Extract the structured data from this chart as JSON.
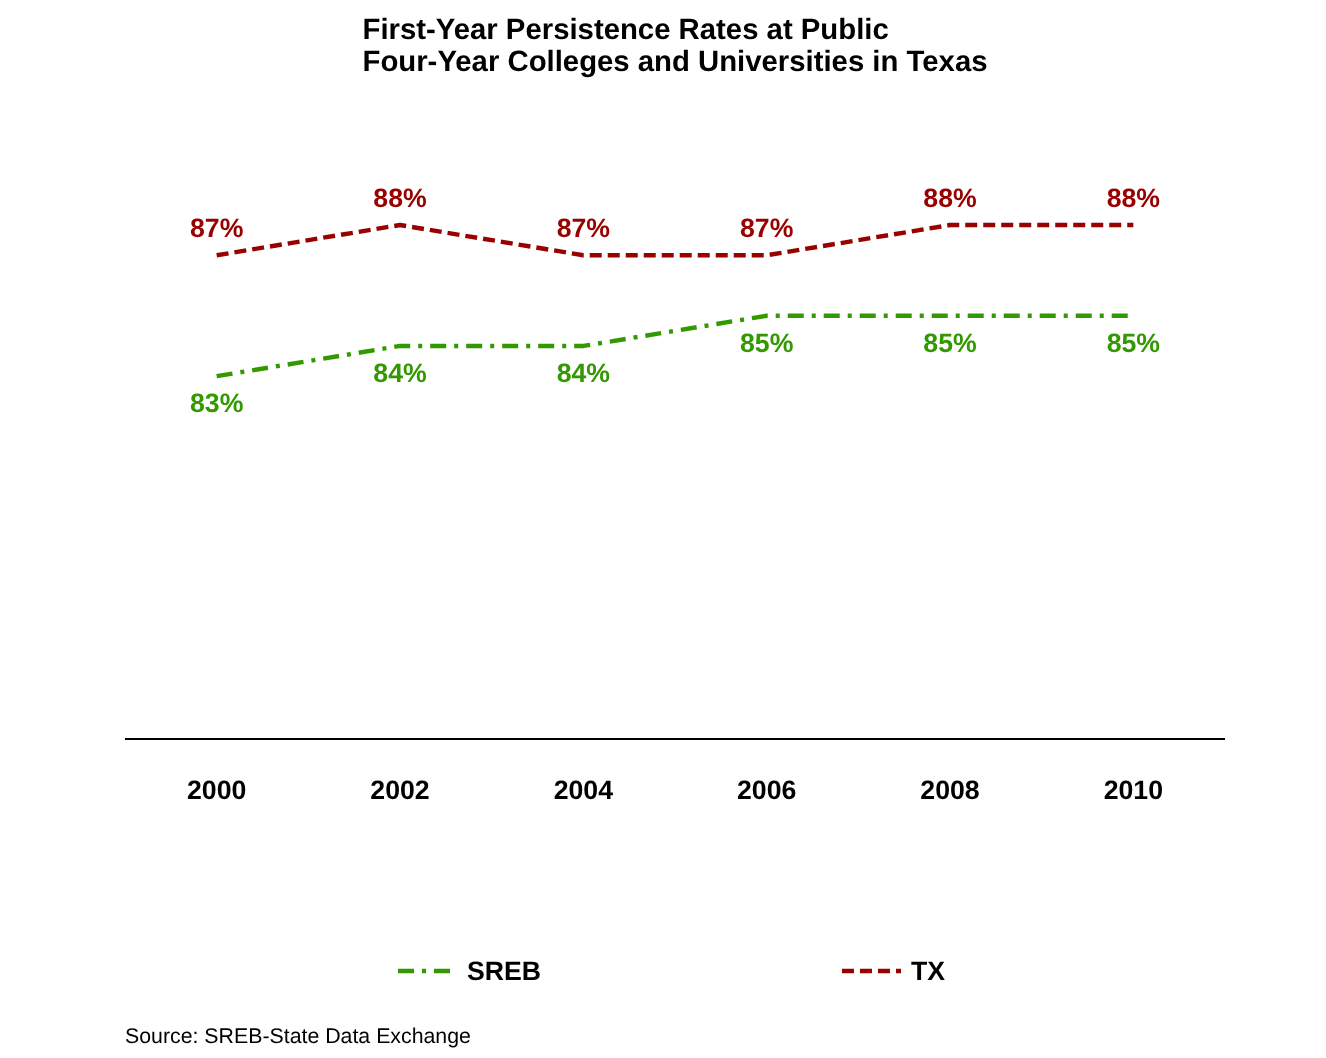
{
  "chart_data": {
    "type": "line",
    "title": "First-Year Persistence Rates at Public\nFour-Year Colleges and Universities in Texas",
    "categories": [
      "2000",
      "2002",
      "2004",
      "2006",
      "2008",
      "2010"
    ],
    "series": [
      {
        "name": "SREB",
        "color": "#339900",
        "values": [
          83,
          84,
          84,
          85,
          85,
          85
        ],
        "line_style": "dashdot",
        "value_labels": [
          "83%",
          "84%",
          "84%",
          "85%",
          "85%",
          "85%"
        ]
      },
      {
        "name": "TX",
        "color": "#990000",
        "values": [
          87,
          88,
          87,
          87,
          88,
          88
        ],
        "line_style": "dashed",
        "value_labels": [
          "87%",
          "88%",
          "87%",
          "87%",
          "88%",
          "88%"
        ]
      }
    ],
    "data_labels": true,
    "legend": "bottom",
    "marker": "none",
    "annotations": [
      "Source: SREB-State Data Exchange"
    ]
  }
}
